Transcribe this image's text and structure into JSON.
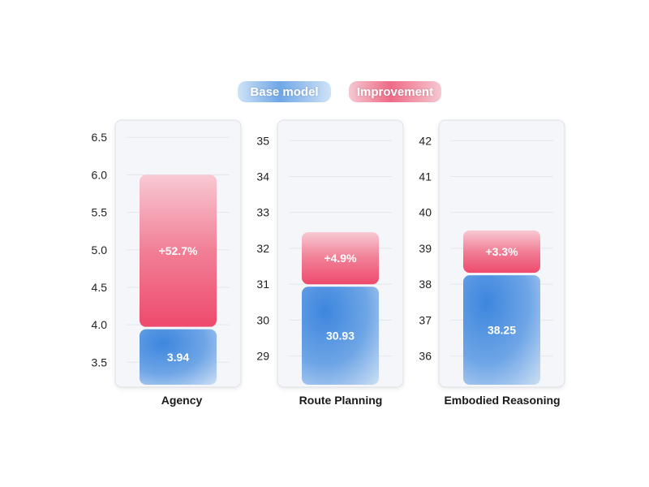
{
  "legend": {
    "base_label": "Base model",
    "improvement_label": "Improvement"
  },
  "colors": {
    "base": "#4a8ee0",
    "improvement": "#ee4a6d",
    "panel_bg": "#f4f6fa"
  },
  "chart_data": [
    {
      "type": "bar",
      "category": "Agency",
      "ylim": [
        3.2,
        6.6
      ],
      "yticks": [
        3.5,
        4.0,
        4.5,
        5.0,
        5.5,
        6.0,
        6.5
      ],
      "ytick_labels": [
        "3.5",
        "4.0",
        "4.5",
        "5.0",
        "5.5",
        "6.0",
        "6.5"
      ],
      "base_value": 3.94,
      "base_label": "3.94",
      "improved_value": 6.0,
      "improvement_label": "+52.7%"
    },
    {
      "type": "bar",
      "category": "Route Planning",
      "ylim": [
        28.2,
        35.3
      ],
      "yticks": [
        29,
        30,
        31,
        32,
        33,
        34,
        35
      ],
      "ytick_labels": [
        "29",
        "30",
        "31",
        "32",
        "33",
        "34",
        "35"
      ],
      "base_value": 30.93,
      "base_label": "30.93",
      "improved_value": 32.45,
      "improvement_label": "+4.9%"
    },
    {
      "type": "bar",
      "category": "Embodied Reasoning",
      "ylim": [
        35.2,
        42.3
      ],
      "yticks": [
        36,
        37,
        38,
        39,
        40,
        41,
        42
      ],
      "ytick_labels": [
        "36",
        "37",
        "38",
        "39",
        "40",
        "41",
        "42"
      ],
      "base_value": 38.25,
      "base_label": "38.25",
      "improved_value": 39.5,
      "improvement_label": "+3.3%"
    }
  ]
}
